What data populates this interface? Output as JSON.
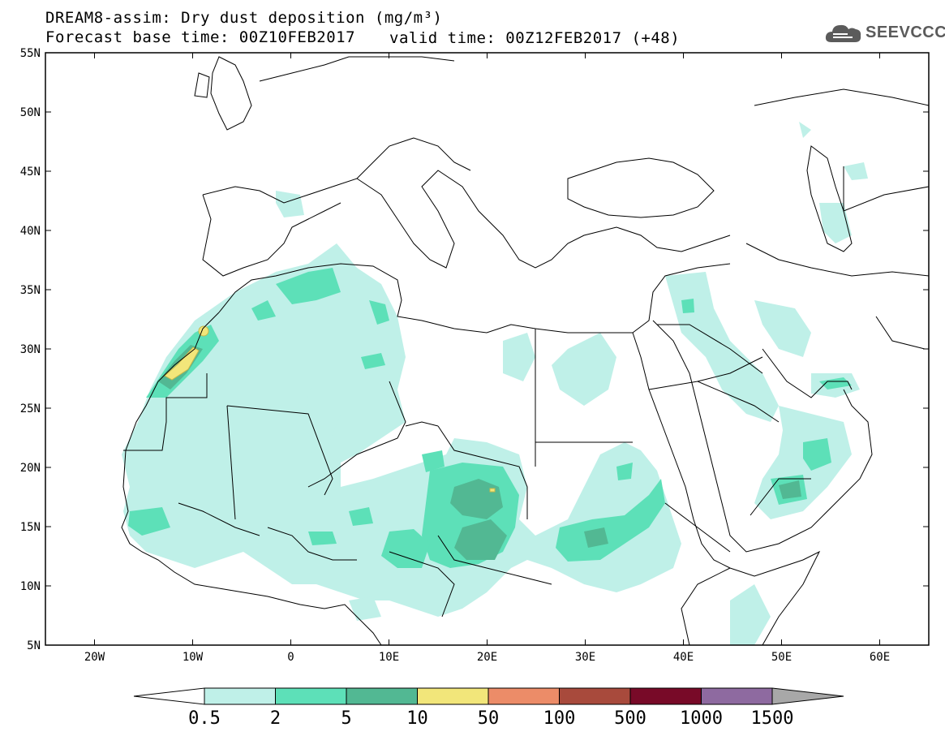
{
  "header": {
    "line1": "DREAM8-assim: Dry dust deposition (mg/m³)",
    "line2_left": "Forecast base time: 00Z10FEB2017",
    "line2_right": "valid time: 00Z12FEB2017 (+48)"
  },
  "logo": {
    "text": "SEEVCCC",
    "icon": "cloud-icon"
  },
  "map": {
    "lon_range": [
      -25,
      65
    ],
    "lat_range": [
      5,
      55
    ],
    "lat_ticks": [
      "55N",
      "50N",
      "45N",
      "40N",
      "35N",
      "30N",
      "25N",
      "20N",
      "15N",
      "10N",
      "5N"
    ],
    "lon_ticks": [
      "20W",
      "10W",
      "0",
      "10E",
      "20E",
      "30E",
      "40E",
      "50E",
      "60E"
    ]
  },
  "colorbar": {
    "labels": [
      "0.5",
      "2",
      "5",
      "10",
      "50",
      "100",
      "500",
      "1000",
      "1500"
    ],
    "colors": [
      "#bff0e8",
      "#5de0b8",
      "#52b893",
      "#f2e67a",
      "#ec8c68",
      "#a84a3c",
      "#780a28",
      "#8e6aa0",
      "#a8a8a8"
    ],
    "under_color": "#ffffff"
  },
  "legend_colors": {
    "c1": "#bff0e8",
    "c2": "#5de0b8",
    "c3": "#52b893",
    "c4": "#f2e67a"
  }
}
